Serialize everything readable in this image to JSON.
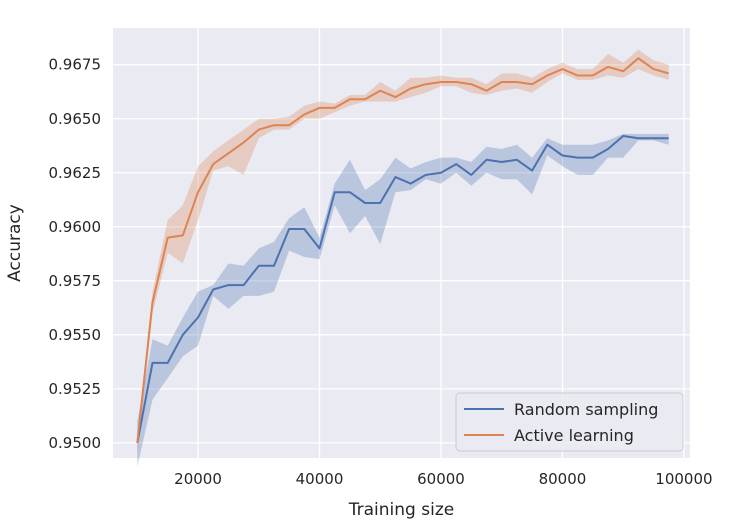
{
  "chart_data": {
    "type": "line",
    "title": "",
    "xlabel": "Training size",
    "ylabel": "Accuracy",
    "xlim": [
      6000,
      101000
    ],
    "ylim": [
      0.9493,
      0.9692
    ],
    "xticks": [
      20000,
      40000,
      60000,
      80000,
      100000
    ],
    "xtick_labels": [
      "20000",
      "40000",
      "60000",
      "80000",
      "100000"
    ],
    "yticks": [
      0.95,
      0.9525,
      0.955,
      0.9575,
      0.96,
      0.9625,
      0.965,
      0.9675
    ],
    "ytick_labels": [
      "0.9500",
      "0.9525",
      "0.9550",
      "0.9575",
      "0.9600",
      "0.9625",
      "0.9650",
      "0.9675"
    ],
    "grid": true,
    "background": "#eaeaf2",
    "legend_position": "lower-right",
    "x": [
      10000,
      12500,
      15000,
      17500,
      20000,
      22500,
      25000,
      27500,
      30000,
      32500,
      35000,
      37500,
      40000,
      42500,
      45000,
      47500,
      50000,
      52500,
      55000,
      57500,
      60000,
      62500,
      65000,
      67500,
      70000,
      72500,
      75000,
      77500,
      80000,
      82500,
      85000,
      87500,
      90000,
      92500,
      95000,
      97500
    ],
    "series": [
      {
        "name": "Random sampling",
        "color": "#4c72b0",
        "values": [
          0.95,
          0.9537,
          0.9537,
          0.955,
          0.9558,
          0.9571,
          0.9573,
          0.9573,
          0.9582,
          0.9582,
          0.9599,
          0.9599,
          0.959,
          0.9616,
          0.9616,
          0.9611,
          0.9611,
          0.9623,
          0.962,
          0.9624,
          0.9625,
          0.9629,
          0.9624,
          0.9631,
          0.963,
          0.9631,
          0.9626,
          0.9638,
          0.9633,
          0.9632,
          0.9632,
          0.9636,
          0.9642,
          0.9641,
          0.9641,
          0.9641
        ],
        "lower": [
          0.9489,
          0.952,
          0.953,
          0.954,
          0.9545,
          0.9568,
          0.9562,
          0.9568,
          0.9568,
          0.957,
          0.9589,
          0.9586,
          0.9585,
          0.961,
          0.9597,
          0.9605,
          0.9592,
          0.9616,
          0.9617,
          0.9622,
          0.962,
          0.9625,
          0.9619,
          0.9625,
          0.9622,
          0.9622,
          0.9615,
          0.9633,
          0.9628,
          0.9624,
          0.9624,
          0.9632,
          0.9632,
          0.964,
          0.964,
          0.9638
        ],
        "upper": [
          0.951,
          0.9548,
          0.9545,
          0.9558,
          0.957,
          0.9573,
          0.9583,
          0.9582,
          0.959,
          0.9593,
          0.9604,
          0.9609,
          0.9595,
          0.962,
          0.9631,
          0.9617,
          0.9622,
          0.9632,
          0.9627,
          0.963,
          0.9632,
          0.9632,
          0.963,
          0.9637,
          0.9636,
          0.9638,
          0.9632,
          0.9641,
          0.9638,
          0.9638,
          0.9638,
          0.964,
          0.9643,
          0.9643,
          0.9643,
          0.9643
        ]
      },
      {
        "name": "Active learning",
        "color": "#dd8452",
        "values": [
          0.95,
          0.9565,
          0.9595,
          0.9596,
          0.9616,
          0.9629,
          0.9634,
          0.9639,
          0.9645,
          0.9647,
          0.9647,
          0.9652,
          0.9655,
          0.9655,
          0.9659,
          0.9659,
          0.9663,
          0.966,
          0.9664,
          0.9666,
          0.9667,
          0.9667,
          0.9666,
          0.9663,
          0.9667,
          0.9667,
          0.9666,
          0.967,
          0.9673,
          0.967,
          0.967,
          0.9674,
          0.9672,
          0.9678,
          0.9673,
          0.9671
        ],
        "lower": [
          0.9495,
          0.956,
          0.9588,
          0.9583,
          0.9603,
          0.9626,
          0.9628,
          0.9624,
          0.9641,
          0.9645,
          0.9645,
          0.965,
          0.965,
          0.9653,
          0.9656,
          0.9658,
          0.9658,
          0.9658,
          0.966,
          0.9662,
          0.9665,
          0.9665,
          0.9662,
          0.9661,
          0.9663,
          0.9664,
          0.9662,
          0.9667,
          0.9671,
          0.9668,
          0.9668,
          0.967,
          0.9669,
          0.9673,
          0.967,
          0.9668
        ],
        "upper": [
          0.9503,
          0.957,
          0.9603,
          0.961,
          0.9628,
          0.9635,
          0.964,
          0.9645,
          0.965,
          0.965,
          0.9651,
          0.9656,
          0.9658,
          0.9657,
          0.9661,
          0.9661,
          0.9667,
          0.9663,
          0.9669,
          0.9669,
          0.967,
          0.9669,
          0.9669,
          0.9666,
          0.9671,
          0.9671,
          0.9669,
          0.9673,
          0.9676,
          0.9673,
          0.9673,
          0.968,
          0.9676,
          0.9682,
          0.9677,
          0.9675
        ]
      }
    ]
  }
}
